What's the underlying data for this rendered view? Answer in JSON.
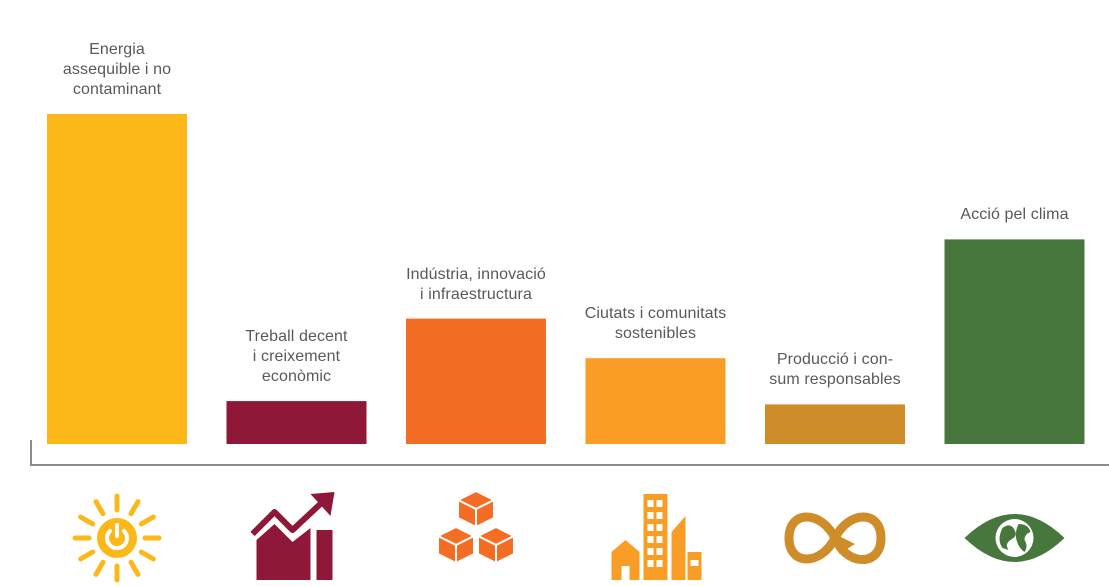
{
  "chart_data": {
    "type": "bar",
    "title": "",
    "xlabel": "",
    "ylabel": "",
    "ylim": [
      0,
      100
    ],
    "grid": false,
    "categories": [
      "Energia\nassequible i no\ncontaminant",
      "Treball decent\ni creixement\neconòmic",
      "Indústria, innovació\ni infraestructura",
      "Ciutats i comunitats\nsostenibles",
      "Producció i con-\nsum responsables",
      "Acció pel clima"
    ],
    "values": [
      100,
      13,
      38,
      26,
      12,
      62
    ],
    "colors": [
      "#FBB818",
      "#8F1838",
      "#F36D25",
      "#F99D26",
      "#CF8D2A",
      "#48773E"
    ],
    "icons": [
      "sun-power-icon",
      "growth-chart-icon",
      "stacked-cubes-icon",
      "city-buildings-icon",
      "infinity-arrow-icon",
      "earth-eye-icon"
    ]
  }
}
